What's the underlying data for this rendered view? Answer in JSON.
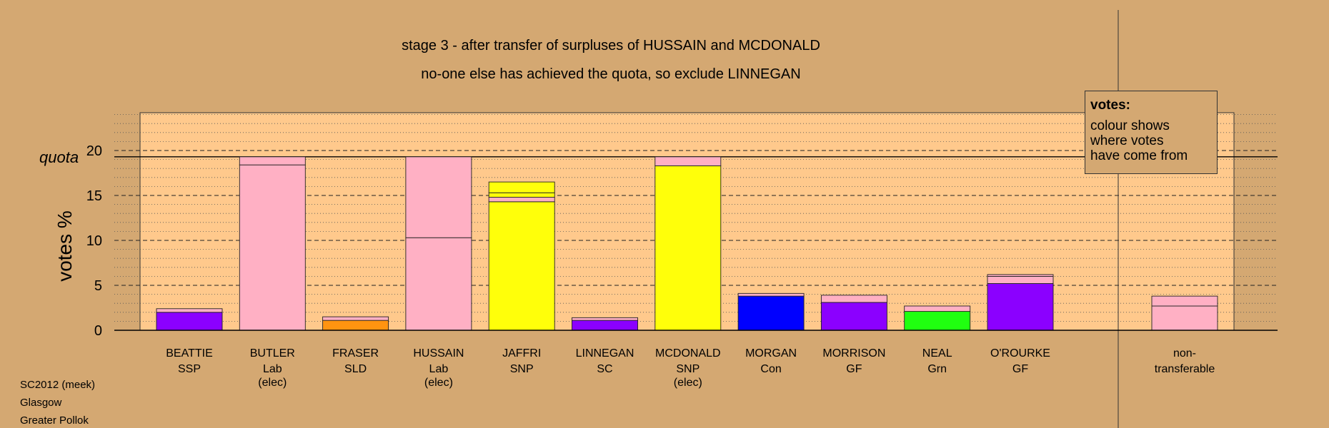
{
  "title": {
    "line1": "stage 3 - after transfer of surpluses of HUSSAIN and MCDONALD",
    "line2": "no-one else has achieved the quota, so exclude LINNEGAN"
  },
  "footer": {
    "line1": "SC2012 (meek)",
    "line2": "Glasgow",
    "line3": "Greater Pollok"
  },
  "legend": {
    "heading": "votes:",
    "text": "colour shows\nwhere votes\nhave come from"
  },
  "colors": {
    "background": "#d4a872",
    "plot_area": "#ffc98c",
    "SSP": "#8b00ff",
    "Lab": "#ffb0c4",
    "SLD": "#ff9410",
    "SNP": "#ffff0a",
    "SC": "#8b00ff",
    "Con": "#0000ff",
    "GF": "#8b00ff",
    "Grn": "#20ff10",
    "non-transferable": "#ffb0c4"
  },
  "chart_data": {
    "type": "bar",
    "stacked": true,
    "ylabel": "votes %",
    "ylim": [
      0,
      25
    ],
    "yticks": [
      0,
      5,
      10,
      15,
      20
    ],
    "quota": 19.3,
    "quota_label": "quota",
    "grid": "dashed at every 5, dotted at every 1",
    "legend_position": "top-right",
    "candidates": [
      {
        "name": "BEATTIE",
        "party": "SSP",
        "note": "",
        "segments": [
          {
            "value": 2.0,
            "color": "#8b00ff"
          },
          {
            "value": 0.4,
            "color": "#ffb0c4"
          }
        ]
      },
      {
        "name": "BUTLER",
        "party": "Lab",
        "note": "(elec)",
        "segments": [
          {
            "value": 18.4,
            "color": "#ffb0c4"
          },
          {
            "value": 0.9,
            "color": "#ffb0c4"
          }
        ]
      },
      {
        "name": "FRASER",
        "party": "SLD",
        "note": "",
        "segments": [
          {
            "value": 1.1,
            "color": "#ff9410"
          },
          {
            "value": 0.4,
            "color": "#ffb0c4"
          }
        ]
      },
      {
        "name": "HUSSAIN",
        "party": "Lab",
        "note": "(elec)",
        "segments": [
          {
            "value": 10.3,
            "color": "#ffb0c4"
          },
          {
            "value": 9.0,
            "color": "#ffb0c4"
          }
        ]
      },
      {
        "name": "JAFFRI",
        "party": "SNP",
        "note": "",
        "segments": [
          {
            "value": 14.3,
            "color": "#ffff0a"
          },
          {
            "value": 0.5,
            "color": "#ffb0c4"
          },
          {
            "value": 0.5,
            "color": "#ffff0a"
          },
          {
            "value": 1.2,
            "color": "#ffff0a"
          }
        ]
      },
      {
        "name": "LINNEGAN",
        "party": "SC",
        "note": "",
        "segments": [
          {
            "value": 1.1,
            "color": "#8b00ff"
          },
          {
            "value": 0.3,
            "color": "#ffb0c4"
          }
        ]
      },
      {
        "name": "MCDONALD",
        "party": "SNP",
        "note": "(elec)",
        "segments": [
          {
            "value": 18.3,
            "color": "#ffff0a"
          },
          {
            "value": 1.0,
            "color": "#ffb0c4"
          }
        ]
      },
      {
        "name": "MORGAN",
        "party": "Con",
        "note": "",
        "segments": [
          {
            "value": 3.8,
            "color": "#0000ff"
          },
          {
            "value": 0.3,
            "color": "#ffb0c4"
          }
        ]
      },
      {
        "name": "MORRISON",
        "party": "GF",
        "note": "",
        "segments": [
          {
            "value": 3.1,
            "color": "#8b00ff"
          },
          {
            "value": 0.8,
            "color": "#ffb0c4"
          }
        ]
      },
      {
        "name": "NEAL",
        "party": "Grn",
        "note": "",
        "segments": [
          {
            "value": 2.1,
            "color": "#20ff10"
          },
          {
            "value": 0.6,
            "color": "#ffb0c4"
          }
        ]
      },
      {
        "name": "O'ROURKE",
        "party": "GF",
        "note": "",
        "segments": [
          {
            "value": 5.2,
            "color": "#8b00ff"
          },
          {
            "value": 0.8,
            "color": "#ffb0c4"
          },
          {
            "value": 0.2,
            "color": "#ffb0c4"
          }
        ]
      }
    ],
    "nontransferable": {
      "label_line1": "non-",
      "label_line2": "transferable",
      "segments": [
        {
          "value": 2.7,
          "color": "#ffb0c4"
        },
        {
          "value": 1.1,
          "color": "#ffb0c4"
        }
      ]
    }
  }
}
